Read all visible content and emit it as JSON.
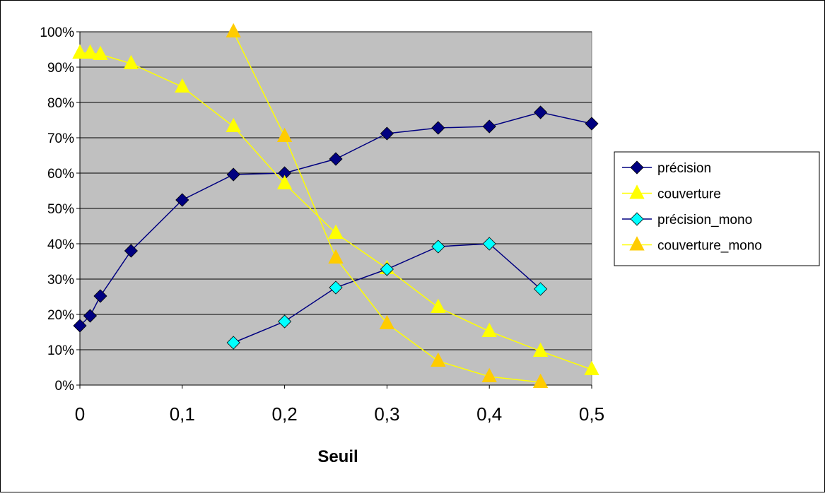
{
  "chart_data": {
    "type": "line",
    "xlabel": "Seuil",
    "ylabel": "",
    "x_ticks": [
      0,
      0.1,
      0.2,
      0.3,
      0.4,
      0.5
    ],
    "x_tick_labels": [
      "0",
      "0,1",
      "0,2",
      "0,3",
      "0,4",
      "0,5"
    ],
    "y_ticks": [
      0,
      10,
      20,
      30,
      40,
      50,
      60,
      70,
      80,
      90,
      100
    ],
    "y_tick_labels": [
      "0%",
      "10%",
      "20%",
      "30%",
      "40%",
      "50%",
      "60%",
      "70%",
      "80%",
      "90%",
      "100%"
    ],
    "xlim": [
      0,
      0.5
    ],
    "ylim": [
      0,
      100
    ],
    "grid": "horizontal",
    "plot_background": "#c0c0c0",
    "legend_position": "right",
    "series": [
      {
        "name": "précision",
        "color": "#000080",
        "line_color": "#000080",
        "marker": "diamond",
        "x": [
          0,
          0.01,
          0.02,
          0.05,
          0.1,
          0.15,
          0.2,
          0.25,
          0.3,
          0.35,
          0.4,
          0.45,
          0.5
        ],
        "values": [
          16.8,
          19.6,
          25.2,
          38.0,
          52.4,
          59.6,
          60.0,
          64.0,
          71.2,
          72.8,
          73.2,
          77.2,
          74.0
        ]
      },
      {
        "name": "couverture",
        "color": "#ffff00",
        "line_color": "#ffff00",
        "marker": "triangle",
        "x": [
          0,
          0.01,
          0.02,
          0.05,
          0.1,
          0.15,
          0.2,
          0.25,
          0.3,
          0.35,
          0.4,
          0.45,
          0.5
        ],
        "values": [
          94.0,
          94.0,
          93.6,
          91.0,
          84.4,
          73.2,
          57.0,
          43.0,
          33.0,
          22.0,
          15.2,
          9.6,
          4.4
        ]
      },
      {
        "name": "précision_mono",
        "color": "#00ffff",
        "line_color": "#000080",
        "marker": "diamond",
        "x": [
          0.15,
          0.2,
          0.25,
          0.3,
          0.35,
          0.4,
          0.45
        ],
        "values": [
          12.0,
          18.0,
          27.6,
          32.8,
          39.2,
          40.0,
          27.2
        ]
      },
      {
        "name": "couverture_mono",
        "color": "#ffcc00",
        "line_color": "#ffff00",
        "marker": "triangle",
        "x": [
          0.15,
          0.2,
          0.25,
          0.3,
          0.35,
          0.4,
          0.45
        ],
        "values": [
          100.0,
          70.4,
          36.0,
          17.4,
          6.8,
          2.4,
          0.8
        ]
      }
    ]
  }
}
